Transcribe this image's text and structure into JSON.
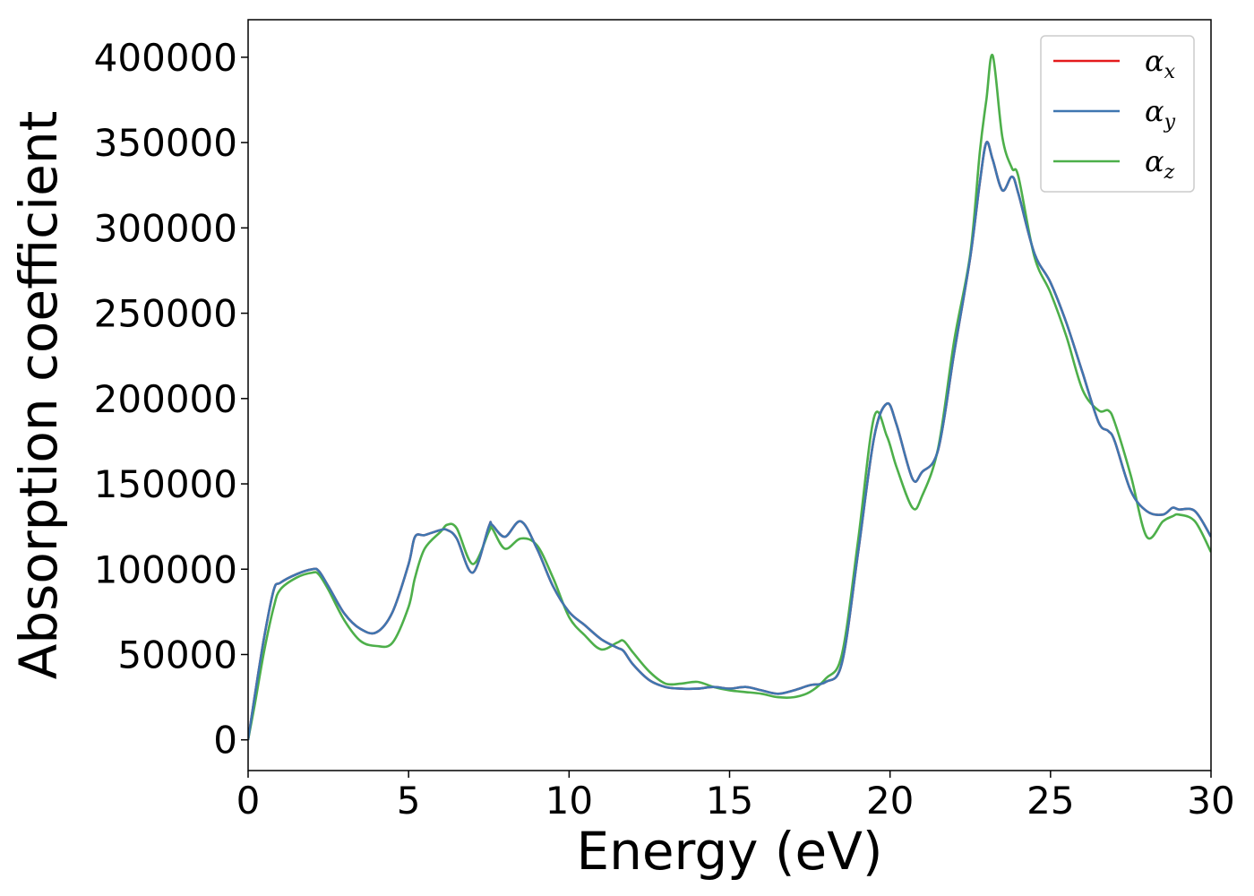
{
  "chart_data": {
    "type": "line",
    "title": "",
    "xlabel": "Energy (eV)",
    "ylabel": "Absorption coefficient",
    "xlim": [
      0,
      30
    ],
    "ylim": [
      -18000,
      422000
    ],
    "xticks": [
      0,
      5,
      10,
      15,
      20,
      25,
      30
    ],
    "xtick_labels": [
      "0",
      "5",
      "10",
      "15",
      "20",
      "25",
      "30"
    ],
    "yticks": [
      0,
      50000,
      100000,
      150000,
      200000,
      250000,
      300000,
      350000,
      400000
    ],
    "ytick_labels": [
      "0",
      "50000",
      "100000",
      "150000",
      "200000",
      "250000",
      "300000",
      "350000",
      "400000"
    ],
    "grid": false,
    "legend_position": "top-right",
    "x": [
      0,
      0.2,
      0.5,
      0.8,
      1.0,
      1.5,
      2.0,
      2.2,
      2.5,
      3.0,
      3.5,
      4.0,
      4.5,
      5.0,
      5.2,
      5.5,
      6.0,
      6.2,
      6.5,
      7.0,
      7.5,
      7.6,
      8.0,
      8.5,
      9.0,
      9.5,
      10.0,
      10.5,
      11.0,
      11.5,
      11.7,
      12.0,
      12.5,
      13.0,
      13.5,
      14.0,
      14.5,
      15.0,
      15.5,
      16.0,
      16.5,
      17.0,
      17.5,
      18.0,
      18.5,
      19.0,
      19.5,
      19.9,
      20.2,
      20.7,
      21.0,
      21.5,
      22.0,
      22.5,
      22.8,
      23.0,
      23.2,
      23.5,
      23.8,
      24.0,
      24.5,
      25.0,
      25.5,
      26.0,
      26.5,
      26.8,
      27.0,
      27.5,
      28.0,
      28.5,
      28.8,
      29.0,
      29.5,
      30.0
    ],
    "series": [
      {
        "name": "α_x",
        "label_base": "α",
        "label_sub": "x",
        "color": "#e41a1c",
        "values": [
          0,
          25000,
          60000,
          88000,
          92000,
          97000,
          100000,
          99000,
          90000,
          74000,
          65000,
          63000,
          75000,
          103000,
          119000,
          120000,
          123000,
          123000,
          118000,
          98000,
          125000,
          126000,
          119000,
          128000,
          112000,
          90000,
          75000,
          67000,
          59000,
          54000,
          52000,
          44000,
          35000,
          31000,
          30000,
          30000,
          31000,
          30000,
          31000,
          29000,
          27000,
          29000,
          32000,
          34000,
          45000,
          109000,
          177000,
          197000,
          185000,
          153000,
          157000,
          170000,
          227000,
          283000,
          327000,
          350000,
          340000,
          322000,
          330000,
          320000,
          285000,
          268000,
          244000,
          215000,
          186000,
          181000,
          175000,
          146000,
          134000,
          132000,
          136000,
          135000,
          134000,
          119000
        ]
      },
      {
        "name": "α_y",
        "label_base": "α",
        "label_sub": "y",
        "color": "#3f76b0",
        "values": [
          0,
          25000,
          60000,
          88000,
          92000,
          97000,
          100000,
          99000,
          90000,
          74000,
          65000,
          63000,
          75000,
          103000,
          119000,
          120000,
          123000,
          123000,
          118000,
          98000,
          125000,
          126000,
          119000,
          128000,
          112000,
          90000,
          75000,
          67000,
          59000,
          54000,
          52000,
          44000,
          35000,
          31000,
          30000,
          30000,
          31000,
          30000,
          31000,
          29000,
          27000,
          29000,
          32000,
          34000,
          45000,
          109000,
          177000,
          197000,
          185000,
          153000,
          157000,
          170000,
          227000,
          283000,
          327000,
          350000,
          340000,
          322000,
          330000,
          320000,
          285000,
          268000,
          244000,
          215000,
          186000,
          181000,
          175000,
          146000,
          134000,
          132000,
          136000,
          135000,
          134000,
          119000
        ]
      },
      {
        "name": "α_z",
        "label_base": "α",
        "label_sub": "z",
        "color": "#4daf4a",
        "values": [
          0,
          20000,
          52000,
          78000,
          88000,
          95000,
          98000,
          97000,
          88000,
          70000,
          58000,
          55000,
          57000,
          78000,
          95000,
          112000,
          122000,
          126000,
          124000,
          103000,
          122000,
          124000,
          112000,
          118000,
          114000,
          95000,
          72000,
          61000,
          53000,
          57000,
          58000,
          51000,
          40000,
          33000,
          33000,
          34000,
          31000,
          29000,
          28000,
          27000,
          25000,
          25000,
          28000,
          36000,
          50000,
          116000,
          189000,
          178000,
          160000,
          136000,
          143000,
          171000,
          234000,
          285000,
          345000,
          375000,
          401000,
          353000,
          335000,
          330000,
          283000,
          262000,
          236000,
          205000,
          193000,
          193000,
          186000,
          155000,
          119000,
          128000,
          131000,
          132000,
          128000,
          110000
        ]
      }
    ]
  }
}
